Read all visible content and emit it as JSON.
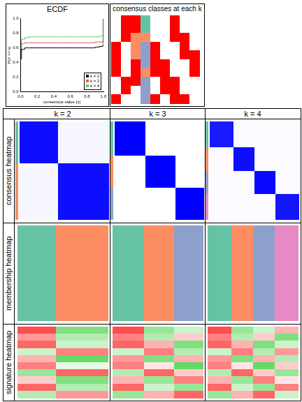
{
  "chart_data": {
    "type": "line",
    "title": "ECDF",
    "x_label": "consensus value (x)",
    "y_label": "P(X <= x)",
    "x": [
      0,
      0.01,
      0.05,
      0.1,
      0.3,
      0.5,
      0.7,
      0.9,
      0.95,
      0.99,
      1.0
    ],
    "series": [
      {
        "name": "k = 2",
        "color": "#000000",
        "values": [
          0.45,
          0.58,
          0.6,
          0.6,
          0.6,
          0.6,
          0.6,
          0.61,
          0.62,
          0.63,
          1.0
        ]
      },
      {
        "name": "k = 3",
        "color": "#DF536B",
        "values": [
          0.55,
          0.66,
          0.67,
          0.67,
          0.67,
          0.67,
          0.67,
          0.68,
          0.68,
          0.69,
          1.0
        ]
      },
      {
        "name": "k = 4",
        "color": "#61D04F",
        "values": [
          0.6,
          0.72,
          0.74,
          0.75,
          0.75,
          0.75,
          0.75,
          0.75,
          0.76,
          0.77,
          1.0
        ]
      }
    ],
    "xlim": [
      0,
      1
    ],
    "ylim": [
      0,
      1
    ],
    "xticks": [
      {
        "value": 0,
        "label": "0.0"
      },
      {
        "value": 0.2,
        "label": "0.2"
      },
      {
        "value": 0.4,
        "label": "0.4"
      },
      {
        "value": 0.6,
        "label": "0.6"
      },
      {
        "value": 0.8,
        "label": "0.8"
      },
      {
        "value": 1,
        "label": "1.0"
      }
    ],
    "yticks": [
      {
        "value": 0,
        "label": "0.0"
      },
      {
        "value": 0.2,
        "label": "0.2"
      },
      {
        "value": 0.4,
        "label": "0.4"
      },
      {
        "value": 0.6,
        "label": "0.6"
      },
      {
        "value": 0.8,
        "label": "0.8"
      },
      {
        "value": 1,
        "label": "1.0"
      }
    ],
    "legend": "bottom-right",
    "grid": false,
    "line_style": "stepped"
  },
  "figure": {
    "classes_panel": {
      "title": "consensus classes at each k",
      "palette": [
        "#FFFFFF",
        "#FF0000",
        "#66C2A5",
        "#FC8D62",
        "#8DA0CB"
      ],
      "cells": [
        [
          0,
          1,
          1,
          2,
          0,
          0,
          1,
          0,
          0
        ],
        [
          0,
          1,
          1,
          2,
          0,
          0,
          1,
          0,
          0
        ],
        [
          0,
          1,
          3,
          3,
          0,
          0,
          1,
          1,
          0
        ],
        [
          1,
          0,
          3,
          4,
          1,
          0,
          0,
          1,
          0
        ],
        [
          1,
          0,
          3,
          4,
          1,
          0,
          0,
          1,
          1
        ],
        [
          1,
          0,
          1,
          4,
          1,
          1,
          0,
          0,
          1
        ],
        [
          1,
          0,
          1,
          3,
          1,
          1,
          0,
          0,
          1
        ],
        [
          0,
          1,
          1,
          4,
          0,
          1,
          1,
          0,
          0
        ],
        [
          0,
          1,
          0,
          4,
          0,
          1,
          1,
          0,
          0
        ],
        [
          1,
          0,
          0,
          4,
          1,
          0,
          1,
          1,
          0
        ]
      ]
    },
    "row_labels": [
      "consensus heatmap",
      "membership heatmap",
      "signature heatmap"
    ],
    "class_colors": [
      "#66C2A5",
      "#FC8D62",
      "#8DA0CB",
      "#E78AC3"
    ],
    "columns": [
      {
        "title": "k = 2",
        "cluster_sizes": [
          43,
          57
        ],
        "consensus": [
          [
            0.95,
            0.03
          ],
          [
            0.03,
            0.95
          ]
        ],
        "signature": [
          [
            0.7,
            -0.5
          ],
          [
            0.4,
            -0.3
          ],
          [
            0.6,
            -0.2
          ],
          [
            -0.2,
            0.5
          ],
          [
            0.3,
            -0.6
          ],
          [
            0.5,
            -0.1
          ],
          [
            -0.4,
            0.6
          ],
          [
            0.2,
            -0.5
          ],
          [
            0.6,
            -0.3
          ],
          [
            -0.3,
            0.4
          ]
        ]
      },
      {
        "title": "k = 3",
        "cluster_sizes": [
          47,
          45,
          43
        ],
        "consensus": [
          [
            1,
            0,
            0
          ],
          [
            0,
            1,
            0
          ],
          [
            0,
            0,
            1
          ]
        ],
        "signature": [
          [
            0.7,
            -0.4,
            -0.2
          ],
          [
            0.5,
            -0.3,
            0.2
          ],
          [
            0.6,
            0.3,
            -0.5
          ],
          [
            -0.2,
            0.5,
            -0.3
          ],
          [
            0.4,
            -0.5,
            0.3
          ],
          [
            0.5,
            0.1,
            -0.6
          ],
          [
            -0.3,
            0.6,
            0.2
          ],
          [
            0.3,
            -0.4,
            0.5
          ],
          [
            0.6,
            -0.2,
            -0.4
          ],
          [
            -0.4,
            0.3,
            0.6
          ]
        ]
      },
      {
        "title": "k = 4",
        "cluster_sizes": [
          36,
          33,
          32,
          35
        ],
        "consensus": [
          [
            0.9,
            0.02,
            0.02,
            0.02
          ],
          [
            0.02,
            0.95,
            0.02,
            0.02
          ],
          [
            0.02,
            0.02,
            0.97,
            0.02
          ],
          [
            0.02,
            0.02,
            0.02,
            0.92
          ]
        ],
        "signature": [
          [
            0.7,
            -0.4,
            -0.2,
            0.3
          ],
          [
            0.5,
            -0.3,
            0.2,
            -0.5
          ],
          [
            0.6,
            0.3,
            -0.5,
            -0.2
          ],
          [
            -0.2,
            0.5,
            -0.3,
            0.4
          ],
          [
            0.4,
            -0.5,
            0.3,
            -0.3
          ],
          [
            0.5,
            0.1,
            -0.6,
            0.2
          ],
          [
            -0.3,
            0.6,
            0.2,
            -0.4
          ],
          [
            0.3,
            -0.4,
            0.5,
            0.1
          ],
          [
            0.6,
            -0.2,
            -0.4,
            0.5
          ],
          [
            -0.4,
            0.3,
            0.6,
            -0.2
          ]
        ]
      }
    ]
  }
}
